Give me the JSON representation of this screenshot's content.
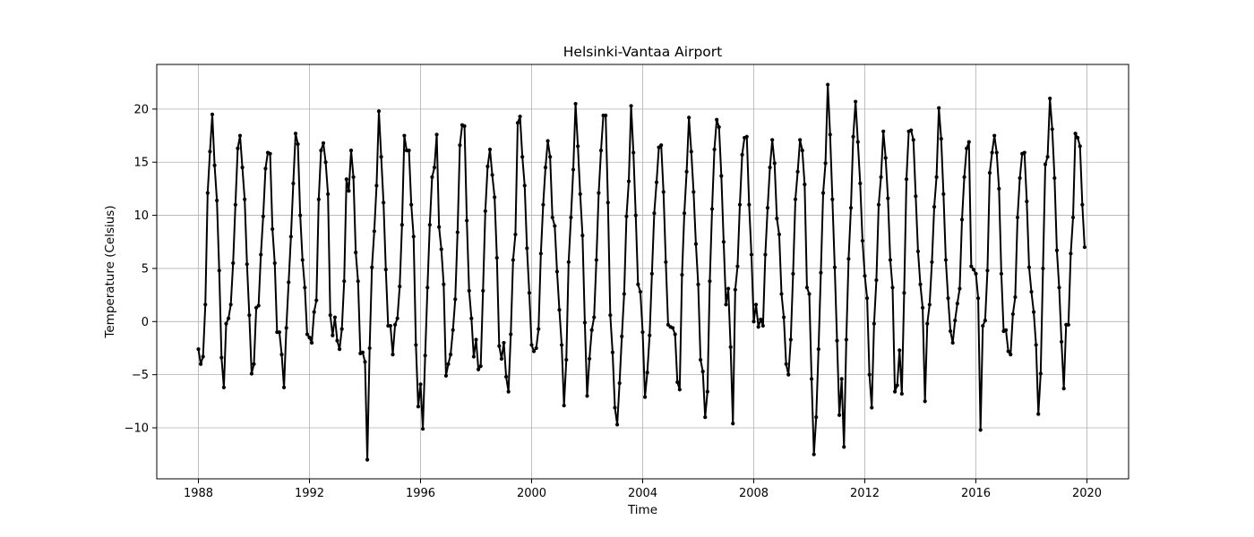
{
  "chart_data": {
    "type": "line",
    "title": "Helsinki-Vantaa Airport",
    "xlabel": "Time",
    "ylabel": "Temperature (Celsius)",
    "xlim": [
      1986.5,
      2021.5
    ],
    "ylim": [
      -14.8,
      24.2
    ],
    "xticks": [
      1988,
      1992,
      1996,
      2000,
      2004,
      2008,
      2012,
      2016,
      2020
    ],
    "yticks": [
      -10,
      -5,
      0,
      5,
      10,
      15,
      20
    ],
    "ytick_labels": [
      "−10",
      "−5",
      "0",
      "5",
      "10",
      "15",
      "20"
    ],
    "grid": true,
    "legend": "none",
    "line_color": "#000000",
    "marker": "dot",
    "start": "1988-01",
    "frequency": "monthly",
    "series": [
      {
        "values": [
          -2.6,
          -4.0,
          -3.3,
          1.6,
          12.1,
          16.0,
          19.5,
          14.7,
          11.4,
          4.8,
          -3.4,
          -6.2,
          -0.2,
          0.3,
          1.6,
          5.5,
          11.0,
          16.3,
          17.5,
          14.5,
          11.5,
          5.4,
          0.6,
          -4.9,
          -4.0,
          1.3,
          1.5,
          6.3,
          9.9,
          14.4,
          15.9,
          15.8,
          8.7,
          5.5,
          -1.0,
          -1.0,
          -3.1,
          -6.2,
          -0.6,
          3.7,
          8.0,
          13.0,
          17.7,
          16.7,
          10.0,
          5.8,
          3.2,
          -1.2,
          -1.5,
          -2.0,
          0.9,
          2.0,
          11.5,
          16.1,
          16.8,
          15.0,
          12.0,
          0.6,
          -1.3,
          0.4,
          -1.8,
          -2.6,
          -0.7,
          3.8,
          13.4,
          12.3,
          16.1,
          13.6,
          6.5,
          3.8,
          -3.0,
          -2.9,
          -3.8,
          -13.0,
          -2.5,
          5.1,
          8.5,
          12.8,
          19.8,
          15.5,
          11.2,
          4.9,
          -0.4,
          -0.4,
          -3.1,
          -0.3,
          0.3,
          3.3,
          9.1,
          17.5,
          16.1,
          16.1,
          11.0,
          8.0,
          -2.2,
          -8.0,
          -5.9,
          -10.1,
          -3.2,
          3.2,
          9.1,
          13.6,
          14.5,
          17.6,
          8.9,
          6.8,
          3.5,
          -5.1,
          -4.0,
          -3.1,
          -0.8,
          2.1,
          8.4,
          16.6,
          18.5,
          18.4,
          9.5,
          2.9,
          0.3,
          -3.3,
          -1.7,
          -4.5,
          -4.2,
          2.9,
          10.4,
          14.6,
          16.2,
          13.8,
          11.7,
          6.0,
          -2.3,
          -3.5,
          -2.0,
          -5.2,
          -6.6,
          -1.2,
          5.8,
          8.2,
          18.7,
          19.3,
          15.5,
          12.8,
          6.9,
          2.7,
          -2.2,
          -2.8,
          -2.5,
          -0.7,
          6.4,
          11.0,
          14.5,
          17.0,
          15.5,
          9.8,
          9.0,
          4.7,
          1.1,
          -2.2,
          -7.9,
          -3.6,
          5.6,
          9.8,
          14.3,
          20.5,
          16.5,
          12.0,
          8.1,
          -0.1,
          -7.0,
          -3.5,
          -0.8,
          0.4,
          5.8,
          12.1,
          16.1,
          19.4,
          19.4,
          11.2,
          0.6,
          -2.9,
          -8.1,
          -9.7,
          -5.8,
          -1.4,
          2.6,
          9.9,
          13.2,
          20.3,
          15.9,
          10.0,
          3.5,
          2.8,
          -1.0,
          -7.1,
          -4.8,
          -1.3,
          4.5,
          10.2,
          13.1,
          16.4,
          16.6,
          12.2,
          5.6,
          -0.3,
          -0.5,
          -0.6,
          -1.2,
          -5.7,
          -6.4,
          4.4,
          10.2,
          14.1,
          19.2,
          16.0,
          12.2,
          7.3,
          3.5,
          -3.6,
          -4.7,
          -9.0,
          -6.6,
          3.8,
          10.6,
          16.2,
          19.0,
          18.3,
          13.7,
          7.5,
          1.6,
          3.1,
          -2.4,
          -9.6,
          3.0,
          5.2,
          11.0,
          15.7,
          17.3,
          17.4,
          11.0,
          6.3,
          0.0,
          1.6,
          -0.5,
          0.2,
          -0.4,
          6.3,
          10.7,
          14.5,
          17.1,
          14.9,
          9.7,
          8.2,
          2.6,
          0.4,
          -4.0,
          -5.0,
          -1.7,
          4.5,
          11.5,
          14.1,
          17.1,
          16.1,
          12.9,
          3.2,
          2.6,
          -5.4,
          -12.5,
          -9.0,
          -2.6,
          4.6,
          12.1,
          14.9,
          22.3,
          17.6,
          11.5,
          5.1,
          -1.8,
          -8.8,
          -5.4,
          -11.8,
          -1.7,
          5.9,
          10.7,
          17.4,
          20.7,
          16.9,
          13.0,
          7.6,
          4.3,
          2.2,
          -5.0,
          -8.1,
          -0.2,
          3.9,
          11.0,
          13.6,
          17.9,
          15.4,
          11.6,
          5.8,
          3.2,
          -6.6,
          -6.0,
          -2.7,
          -6.8,
          2.7,
          13.4,
          17.9,
          18.0,
          17.1,
          11.8,
          6.6,
          3.5,
          1.3,
          -7.5,
          -0.2,
          1.6,
          5.6,
          10.8,
          13.6,
          20.1,
          17.2,
          12.0,
          5.8,
          2.2,
          -0.9,
          -2.0,
          0.1,
          1.7,
          3.1,
          9.6,
          13.6,
          16.3,
          16.9,
          5.2,
          4.9,
          4.5,
          2.2,
          -10.2,
          -0.4,
          0.1,
          4.8,
          14.0,
          15.9,
          17.5,
          15.9,
          12.5,
          4.5,
          -0.9,
          -0.8,
          -2.8,
          -3.1,
          0.7,
          2.3,
          9.8,
          13.5,
          15.8,
          15.9,
          11.3,
          5.1,
          2.8,
          0.9,
          -2.2,
          -8.7,
          -4.9,
          5.0,
          14.8,
          15.5,
          21.0,
          18.1,
          13.5,
          6.7,
          3.2,
          -1.9,
          -6.3,
          -0.3,
          -0.3,
          6.4,
          9.8,
          17.7,
          17.3,
          16.5,
          11.0,
          7.0
        ]
      }
    ]
  }
}
